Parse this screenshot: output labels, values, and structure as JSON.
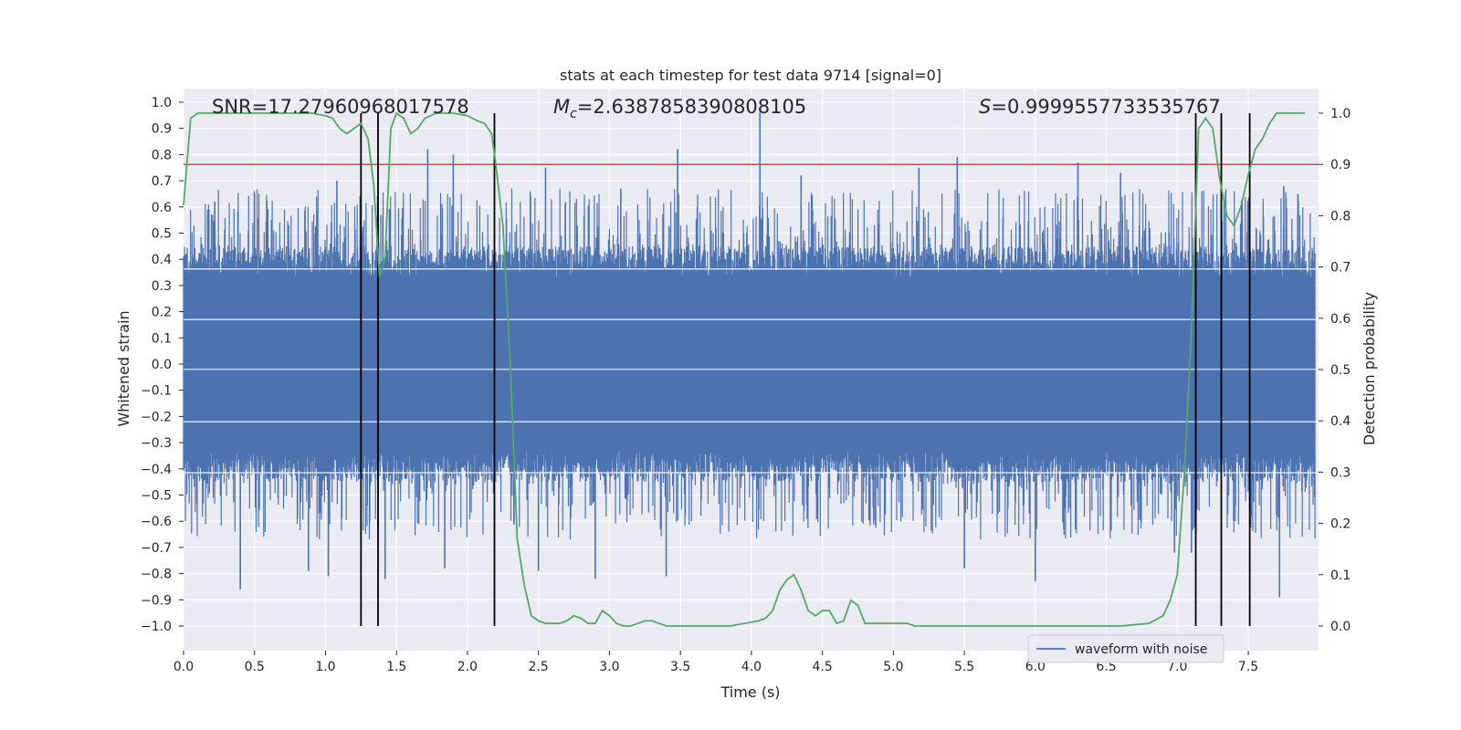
{
  "chart_data": {
    "type": "line",
    "title": "stats at each timestep for test data 9714 [signal=0]",
    "xlabel": "Time (s)",
    "ylabel_left": "Whitened strain",
    "ylabel_right": "Detection probability",
    "xlim": [
      0.0,
      8.0
    ],
    "ylim_left": [
      -1.1,
      1.05
    ],
    "ylim_right": [
      -0.05,
      1.05
    ],
    "x_ticks": [
      0.0,
      0.5,
      1.0,
      1.5,
      2.0,
      2.5,
      3.0,
      3.5,
      4.0,
      4.5,
      5.0,
      5.5,
      6.0,
      6.5,
      7.0,
      7.5
    ],
    "x_tick_labels": [
      "0.0",
      "0.5",
      "1.0",
      "1.5",
      "2.0",
      "2.5",
      "3.0",
      "3.5",
      "4.0",
      "4.5",
      "5.0",
      "5.5",
      "6.0",
      "6.5",
      "7.0",
      "7.5"
    ],
    "y_left_ticks": [
      1.0,
      0.9,
      0.8,
      0.7,
      0.6,
      0.5,
      0.4,
      0.3,
      0.2,
      0.1,
      0.0,
      -0.1,
      -0.2,
      -0.3,
      -0.4,
      -0.5,
      -0.6,
      -0.7,
      -0.8,
      -0.9,
      -1.0
    ],
    "y_left_tick_labels": [
      "1.0",
      "0.9",
      "0.8",
      "0.7",
      "0.6",
      "0.5",
      "0.4",
      "0.3",
      "0.2",
      "0.1",
      "0.0",
      "−0.1",
      "−0.2",
      "−0.3",
      "−0.4",
      "−0.5",
      "−0.6",
      "−0.7",
      "−0.8",
      "−0.9",
      "−1.0"
    ],
    "y_right_ticks": [
      1.0,
      0.9,
      0.8,
      0.7,
      0.6,
      0.5,
      0.4,
      0.3,
      0.2,
      0.1,
      0.0
    ],
    "y_right_tick_labels": [
      "1.0",
      "0.9",
      "0.8",
      "0.7",
      "0.6",
      "0.5",
      "0.4",
      "0.3",
      "0.2",
      "0.1",
      "0.0"
    ],
    "threshold": 0.9,
    "threshold_color": "#c44e52",
    "waveform_color": "#4c72b0",
    "probability_color": "#55a868",
    "waveform_envelope": {
      "description_series": "waveform with noise",
      "upper_typical": 0.45,
      "lower_typical": -0.45,
      "spike_peaks": [
        {
          "x": 0.22,
          "y": 0.62
        },
        {
          "x": 0.4,
          "y": -0.86
        },
        {
          "x": 0.5,
          "y": 0.65
        },
        {
          "x": 0.62,
          "y": 0.55
        },
        {
          "x": 0.88,
          "y": -0.79
        },
        {
          "x": 1.02,
          "y": -0.81
        },
        {
          "x": 1.08,
          "y": 0.7
        },
        {
          "x": 1.42,
          "y": -0.82
        },
        {
          "x": 1.72,
          "y": 0.82
        },
        {
          "x": 1.84,
          "y": -0.78
        },
        {
          "x": 1.9,
          "y": 0.8
        },
        {
          "x": 2.5,
          "y": -0.79
        },
        {
          "x": 2.55,
          "y": 0.75
        },
        {
          "x": 2.9,
          "y": -0.82
        },
        {
          "x": 3.08,
          "y": 0.67
        },
        {
          "x": 3.4,
          "y": -0.81
        },
        {
          "x": 3.48,
          "y": 0.82
        },
        {
          "x": 4.06,
          "y": 0.96
        },
        {
          "x": 4.35,
          "y": 0.72
        },
        {
          "x": 5.18,
          "y": 0.75
        },
        {
          "x": 5.45,
          "y": 0.79
        },
        {
          "x": 5.5,
          "y": -0.78
        },
        {
          "x": 6.0,
          "y": -0.83
        },
        {
          "x": 6.3,
          "y": 0.77
        },
        {
          "x": 6.6,
          "y": 0.73
        },
        {
          "x": 6.98,
          "y": -0.72
        },
        {
          "x": 7.1,
          "y": -0.72
        },
        {
          "x": 7.72,
          "y": -0.89
        },
        {
          "x": 7.75,
          "y": 0.68
        },
        {
          "x": 7.85,
          "y": 0.65
        }
      ]
    },
    "detection_probability": {
      "x": [
        0.0,
        0.05,
        0.1,
        0.2,
        0.3,
        0.5,
        0.7,
        0.9,
        1.0,
        1.05,
        1.1,
        1.15,
        1.2,
        1.25,
        1.3,
        1.34,
        1.38,
        1.42,
        1.46,
        1.5,
        1.55,
        1.6,
        1.65,
        1.7,
        1.78,
        1.9,
        2.0,
        2.07,
        2.12,
        2.17,
        2.2,
        2.25,
        2.3,
        2.35,
        2.4,
        2.45,
        2.5,
        2.55,
        2.6,
        2.65,
        2.7,
        2.75,
        2.8,
        2.85,
        2.9,
        2.95,
        3.0,
        3.05,
        3.1,
        3.15,
        3.2,
        3.25,
        3.3,
        3.35,
        3.4,
        3.5,
        3.7,
        3.85,
        3.95,
        4.05,
        4.1,
        4.15,
        4.2,
        4.25,
        4.3,
        4.35,
        4.4,
        4.45,
        4.5,
        4.55,
        4.6,
        4.65,
        4.7,
        4.75,
        4.8,
        4.85,
        4.9,
        4.95,
        5.0,
        5.05,
        5.1,
        5.15,
        5.3,
        5.5,
        5.8,
        6.0,
        6.3,
        6.6,
        6.8,
        6.9,
        6.95,
        7.0,
        7.05,
        7.1,
        7.15,
        7.2,
        7.25,
        7.3,
        7.35,
        7.4,
        7.45,
        7.5,
        7.55,
        7.6,
        7.65,
        7.7,
        7.75,
        7.8,
        7.9
      ],
      "y": [
        0.82,
        0.99,
        1.0,
        1.0,
        1.0,
        1.0,
        1.0,
        1.0,
        0.995,
        0.99,
        0.97,
        0.96,
        0.97,
        0.98,
        0.95,
        0.86,
        0.68,
        0.72,
        0.97,
        1.0,
        0.99,
        0.96,
        0.97,
        0.99,
        1.0,
        1.0,
        0.995,
        0.985,
        0.98,
        0.96,
        0.9,
        0.78,
        0.52,
        0.17,
        0.08,
        0.02,
        0.01,
        0.005,
        0.005,
        0.005,
        0.01,
        0.02,
        0.015,
        0.005,
        0.005,
        0.03,
        0.02,
        0.005,
        0.0,
        0.0,
        0.005,
        0.01,
        0.01,
        0.005,
        0.0,
        0.0,
        0.0,
        0.0,
        0.005,
        0.01,
        0.015,
        0.03,
        0.07,
        0.09,
        0.1,
        0.07,
        0.03,
        0.02,
        0.03,
        0.03,
        0.005,
        0.01,
        0.05,
        0.04,
        0.005,
        0.005,
        0.005,
        0.005,
        0.005,
        0.005,
        0.005,
        0.0,
        0.0,
        0.0,
        0.0,
        0.0,
        0.0,
        0.0,
        0.005,
        0.02,
        0.05,
        0.1,
        0.3,
        0.58,
        0.97,
        0.99,
        0.97,
        0.87,
        0.8,
        0.78,
        0.82,
        0.88,
        0.93,
        0.95,
        0.98,
        1.0,
        1.0,
        1.0,
        1.0
      ]
    },
    "vertical_lines_x": [
      1.25,
      1.37,
      2.19,
      7.13,
      7.31,
      7.51
    ],
    "annotations": [
      {
        "text_prefix": "SNR=",
        "value": "17.279609680175 78",
        "display": "SNR=17.27960968017578"
      },
      {
        "text_prefix": "M_c=",
        "value": "2.6387858390808105",
        "display": "=2.6387858390808105"
      },
      {
        "text_prefix": "S=",
        "value": "0.9999557733535767",
        "display": "=0.9999557733535767"
      }
    ],
    "legend": [
      {
        "label": "waveform with noise",
        "color": "#4c72b0"
      }
    ],
    "legend_position": "lower-right",
    "grid": true
  }
}
